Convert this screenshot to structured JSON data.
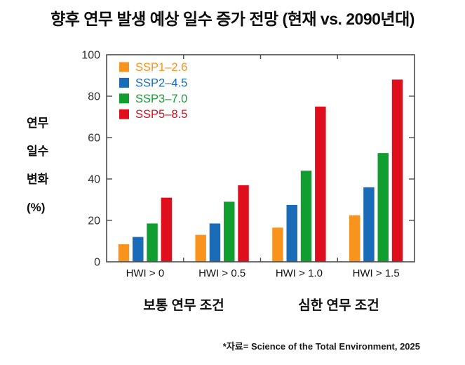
{
  "chart_data": {
    "type": "bar",
    "title": "향후 연무 발생 예상 일수 증가 전망 (현재 vs. 2090년대)",
    "ylabel": "연무 일수 변화 (%)",
    "ylabel_lines": [
      "연무",
      "일수",
      "변화",
      "(%)"
    ],
    "categories": [
      "HWI > 0",
      "HWI > 0.5",
      "HWI > 1.0",
      "HWI > 1.5"
    ],
    "group_labels": [
      "보통 연무 조건",
      "심한 연무 조건"
    ],
    "series": [
      {
        "name": "SSP1–2.6",
        "color": "#F8941D",
        "values": [
          8.5,
          13,
          16.5,
          22.5
        ]
      },
      {
        "name": "SSP2–4.5",
        "color": "#1A6CB8",
        "values": [
          12,
          18.5,
          27.5,
          36
        ]
      },
      {
        "name": "SSP3–7.0",
        "color": "#119E31",
        "values": [
          18.5,
          29,
          44,
          52.5
        ]
      },
      {
        "name": "SSP5–8.5",
        "color": "#DE0E1C",
        "values": [
          31,
          37,
          75,
          88
        ]
      }
    ],
    "ylim": [
      0,
      100
    ],
    "yticks": [
      0,
      20,
      40,
      60,
      80,
      100
    ],
    "grid": false,
    "legend_position": "upper-left-inside",
    "footnote": "*자료= Science of the Total Environment, 2025"
  },
  "colors": {
    "axis": "#4D4D4D",
    "tick_label": "#2E2E2E",
    "text": "#111111",
    "background": "#FFFFFF"
  }
}
